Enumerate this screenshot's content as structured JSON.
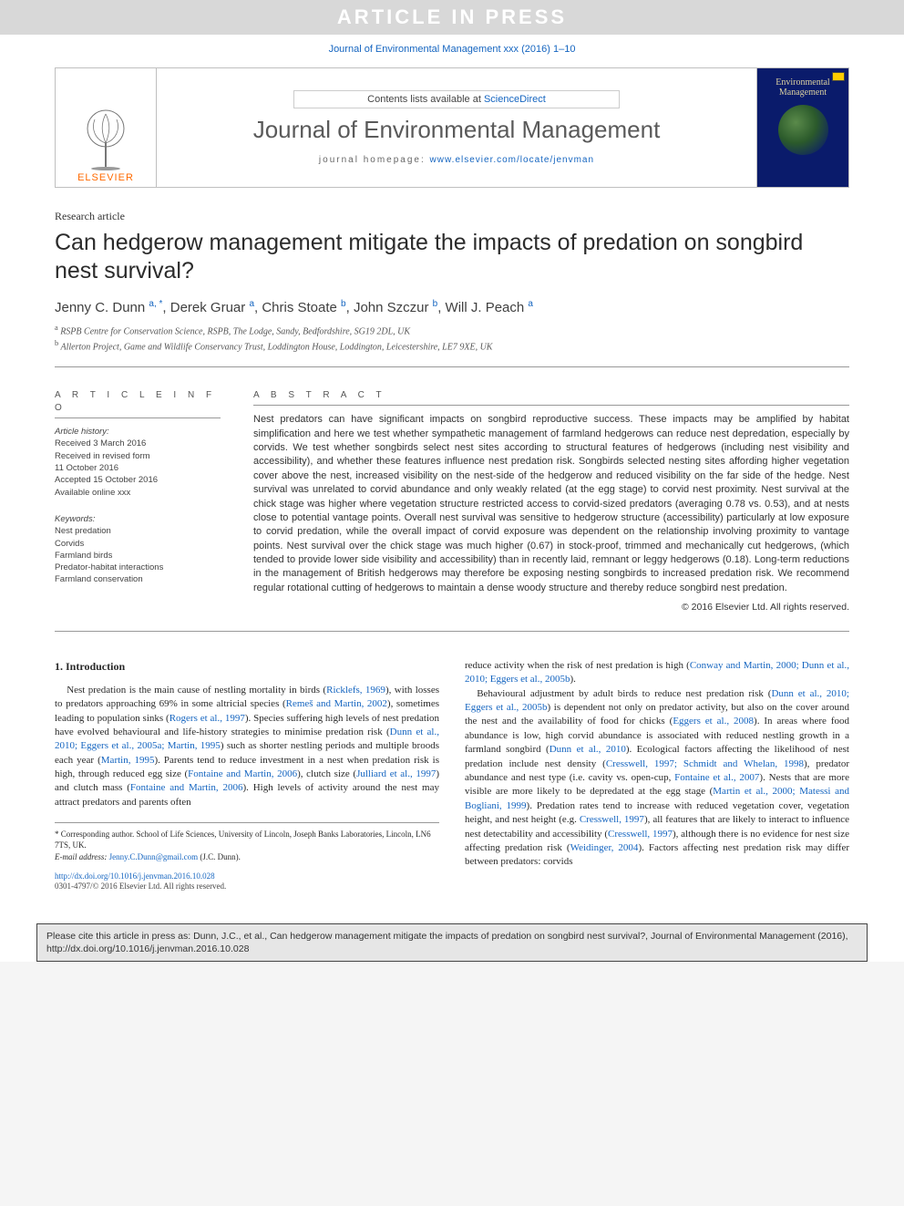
{
  "banner": {
    "text": "ARTICLE IN PRESS"
  },
  "header": {
    "cite_top": "Journal of Environmental Management xxx (2016) 1–10",
    "contents_prefix": "Contents lists available at ",
    "contents_link": "ScienceDirect",
    "journal_name": "Journal of Environmental Management",
    "homepage_label": "journal homepage: ",
    "homepage_url": "www.elsevier.com/locate/jenvman",
    "publisher_word": "ELSEVIER",
    "cover_title_line1": "Environmental",
    "cover_title_line2": "Management"
  },
  "article": {
    "type": "Research article",
    "title": "Can hedgerow management mitigate the impacts of predation on songbird nest survival?",
    "authors_html": "Jenny C. Dunn <sup>a, *</sup>, Derek Gruar <sup>a</sup>, Chris Stoate <sup>b</sup>, John Szczur <sup>b</sup>, Will J. Peach <sup>a</sup>",
    "affiliations": [
      {
        "sup": "a",
        "text": "RSPB Centre for Conservation Science, RSPB, The Lodge, Sandy, Bedfordshire, SG19 2DL, UK"
      },
      {
        "sup": "b",
        "text": "Allerton Project, Game and Wildlife Conservancy Trust, Loddington House, Loddington, Leicestershire, LE7 9XE, UK"
      }
    ]
  },
  "info": {
    "head": "A R T I C L E  I N F O",
    "history_label": "Article history:",
    "history": [
      "Received 3 March 2016",
      "Received in revised form",
      "11 October 2016",
      "Accepted 15 October 2016",
      "Available online xxx"
    ],
    "keywords_label": "Keywords:",
    "keywords": [
      "Nest predation",
      "Corvids",
      "Farmland birds",
      "Predator-habitat interactions",
      "Farmland conservation"
    ]
  },
  "abstract": {
    "head": "A B S T R A C T",
    "text": "Nest predators can have significant impacts on songbird reproductive success. These impacts may be amplified by habitat simplification and here we test whether sympathetic management of farmland hedgerows can reduce nest depredation, especially by corvids. We test whether songbirds select nest sites according to structural features of hedgerows (including nest visibility and accessibility), and whether these features influence nest predation risk. Songbirds selected nesting sites affording higher vegetation cover above the nest, increased visibility on the nest-side of the hedgerow and reduced visibility on the far side of the hedge. Nest survival was unrelated to corvid abundance and only weakly related (at the egg stage) to corvid nest proximity. Nest survival at the chick stage was higher where vegetation structure restricted access to corvid-sized predators (averaging 0.78 vs. 0.53), and at nests close to potential vantage points. Overall nest survival was sensitive to hedgerow structure (accessibility) particularly at low exposure to corvid predation, while the overall impact of corvid exposure was dependent on the relationship involving proximity to vantage points. Nest survival over the chick stage was much higher (0.67) in stock-proof, trimmed and mechanically cut hedgerows, (which tended to provide lower side visibility and accessibility) than in recently laid, remnant or leggy hedgerows (0.18). Long-term reductions in the management of British hedgerows may therefore be exposing nesting songbirds to increased predation risk. We recommend regular rotational cutting of hedgerows to maintain a dense woody structure and thereby reduce songbird nest predation.",
    "copyright": "© 2016 Elsevier Ltd. All rights reserved."
  },
  "body": {
    "section_heading": "1. Introduction",
    "col1": [
      "Nest predation is the main cause of nestling mortality in birds (<span class=\"ref\">Ricklefs, 1969</span>), with losses to predators approaching 69% in some altricial species (<span class=\"ref\">Remeš and Martin, 2002</span>), sometimes leading to population sinks (<span class=\"ref\">Rogers et al., 1997</span>). Species suffering high levels of nest predation have evolved behavioural and life-history strategies to minimise predation risk (<span class=\"ref\">Dunn et al., 2010; Eggers et al., 2005a; Martin, 1995</span>) such as shorter nestling periods and multiple broods each year (<span class=\"ref\">Martin, 1995</span>). Parents tend to reduce investment in a nest when predation risk is high, through reduced egg size (<span class=\"ref\">Fontaine and Martin, 2006</span>), clutch size (<span class=\"ref\">Julliard et al., 1997</span>) and clutch mass (<span class=\"ref\">Fontaine and Martin, 2006</span>). High levels of activity around the nest may attract predators and parents often"
    ],
    "col2": [
      "reduce activity when the risk of nest predation is high (<span class=\"ref\">Conway and Martin, 2000; Dunn et al., 2010; Eggers et al., 2005b</span>).",
      "Behavioural adjustment by adult birds to reduce nest predation risk (<span class=\"ref\">Dunn et al., 2010; Eggers et al., 2005b</span>) is dependent not only on predator activity, but also on the cover around the nest and the availability of food for chicks (<span class=\"ref\">Eggers et al., 2008</span>). In areas where food abundance is low, high corvid abundance is associated with reduced nestling growth in a farmland songbird (<span class=\"ref\">Dunn et al., 2010</span>). Ecological factors affecting the likelihood of nest predation include nest density (<span class=\"ref\">Cresswell, 1997; Schmidt and Whelan, 1998</span>), predator abundance and nest type (i.e. cavity vs. open-cup, <span class=\"ref\">Fontaine et al., 2007</span>). Nests that are more visible are more likely to be depredated at the egg stage (<span class=\"ref\">Martin et al., 2000; Matessi and Bogliani, 1999</span>). Predation rates tend to increase with reduced vegetation cover, vegetation height, and nest height (e.g. <span class=\"ref\">Cresswell, 1997</span>), all features that are likely to interact to influence nest detectability and accessibility (<span class=\"ref\">Cresswell, 1997</span>), although there is no evidence for nest size affecting predation risk (<span class=\"ref\">Weidinger, 2004</span>). Factors affecting nest predation risk may differ between predators: corvids"
    ]
  },
  "footnote": {
    "corr": "* Corresponding author. School of Life Sciences, University of Lincoln, Joseph Banks Laboratories, Lincoln, LN6 7TS, UK.",
    "email_label": "E-mail address: ",
    "email": "Jenny.C.Dunn@gmail.com",
    "email_suffix": " (J.C. Dunn)."
  },
  "doiblock": {
    "doi": "http://dx.doi.org/10.1016/j.jenvman.2016.10.028",
    "issn": "0301-4797/© 2016 Elsevier Ltd. All rights reserved."
  },
  "citebox": {
    "text": "Please cite this article in press as: Dunn, J.C., et al., Can hedgerow management mitigate the impacts of predation on songbird nest survival?, Journal of Environmental Management (2016), http://dx.doi.org/10.1016/j.jenvman.2016.10.028"
  },
  "colors": {
    "link": "#1565c0",
    "banner_bg": "#d8d8d8",
    "banner_fg": "#ffffff",
    "cover_bg": "#0a1b6b",
    "elsevier_orange": "#ff6a00"
  }
}
